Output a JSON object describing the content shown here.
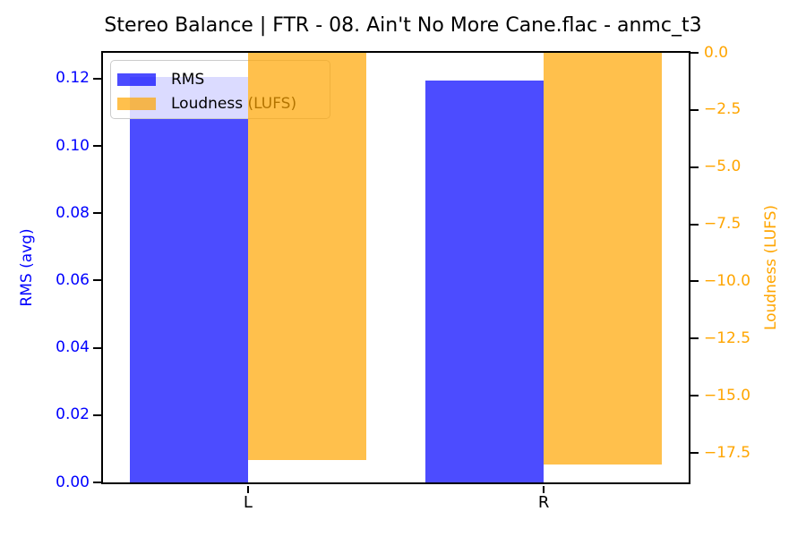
{
  "chart_data": {
    "type": "bar",
    "title": "Stereo Balance | FTR - 08. Ain't No More Cane.flac - anmc_t3",
    "categories": [
      "L",
      "R"
    ],
    "series": [
      {
        "name": "RMS",
        "axis": "left",
        "color": "rgba(0,0,255,0.7)",
        "values": [
          0.1205,
          0.1195
        ]
      },
      {
        "name": "Loudness (LUFS)",
        "axis": "right",
        "color": "rgba(255,165,0,0.7)",
        "values": [
          -17.8,
          -18.0
        ]
      }
    ],
    "bar_width": 0.4,
    "x_axis": {
      "positions": [
        0,
        1
      ],
      "xlim": [
        -0.49,
        1.49
      ],
      "tick_labels": [
        "L",
        "R"
      ]
    },
    "left_axis": {
      "label": "RMS (avg)",
      "color": "#0000ff",
      "ylim": [
        0,
        0.1277
      ],
      "tick_values": [
        0.0,
        0.02,
        0.04,
        0.06,
        0.08,
        0.1,
        0.12
      ],
      "tick_labels": [
        "0.00",
        "0.02",
        "0.04",
        "0.06",
        "0.08",
        "0.10",
        "0.12"
      ]
    },
    "right_axis": {
      "label": "Loudness (LUFS)",
      "color": "#ffa500",
      "ylim": [
        -18.79,
        0
      ],
      "tick_values": [
        0.0,
        -2.5,
        -5.0,
        -7.5,
        -10.0,
        -12.5,
        -15.0,
        -17.5
      ],
      "tick_labels": [
        "0.0",
        "−2.5",
        "−5.0",
        "−7.5",
        "−10.0",
        "−12.5",
        "−15.0",
        "−17.5"
      ]
    },
    "legend": {
      "entries": [
        "RMS",
        "Loudness (LUFS)"
      ],
      "location": "upper left"
    },
    "grid": false
  }
}
